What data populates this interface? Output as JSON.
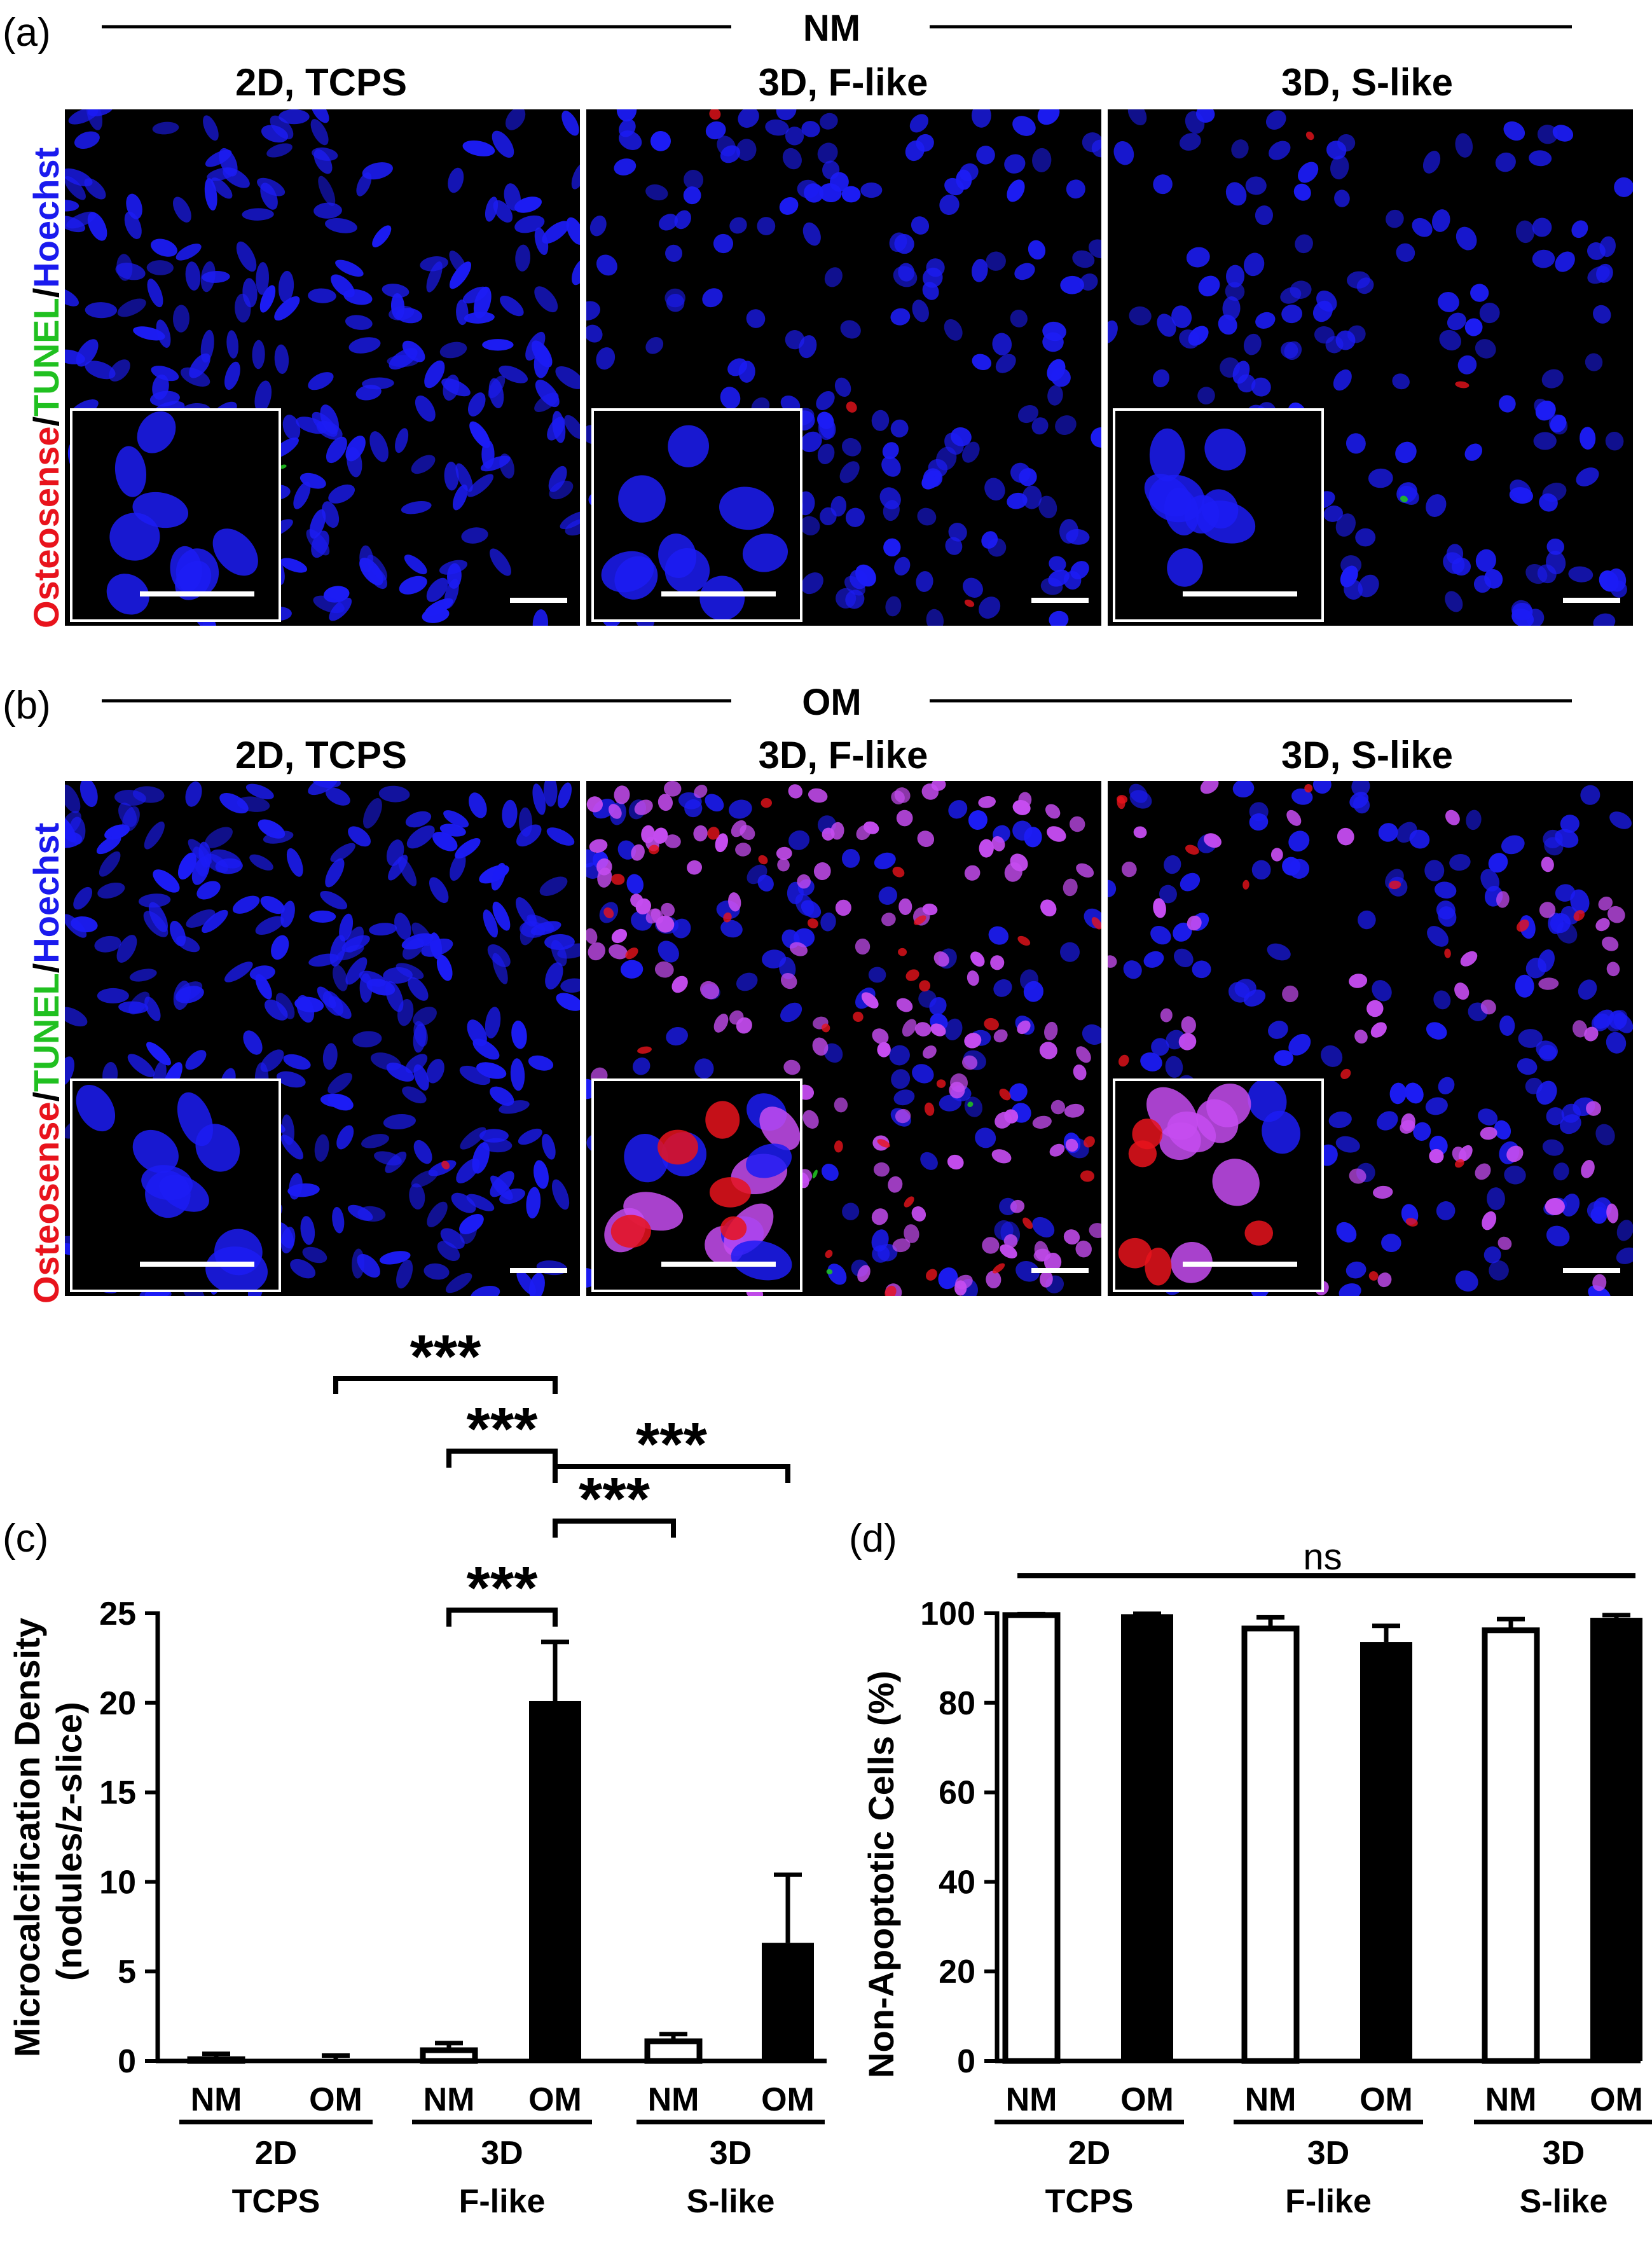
{
  "figure": {
    "panels": [
      {
        "id": "a",
        "label": "(a)",
        "medium": "NM",
        "stain_label": {
          "part1": "Osteosense",
          "sep1": "/",
          "part2": "TUNEL",
          "sep2": "/",
          "part3": "Hoechst"
        },
        "images": [
          {
            "title": "2D, TCPS",
            "seed": 11,
            "nuclei": 230,
            "red": 0,
            "green": 1,
            "magenta": 0,
            "elongated": true
          },
          {
            "title": "3D, F-like",
            "seed": 23,
            "nuclei": 190,
            "red": 4,
            "green": 0,
            "magenta": 0,
            "elongated": false
          },
          {
            "title": "3D, S-like",
            "seed": 37,
            "nuclei": 170,
            "red": 3,
            "green": 2,
            "magenta": 0,
            "elongated": false
          }
        ]
      },
      {
        "id": "b",
        "label": "(b)",
        "medium": "OM",
        "stain_label": {
          "part1": "Osteosense",
          "sep1": "/",
          "part2": "TUNEL",
          "sep2": "/",
          "part3": "Hoechst"
        },
        "images": [
          {
            "title": "2D, TCPS",
            "seed": 47,
            "nuclei": 280,
            "red": 1,
            "green": 0,
            "magenta": 0,
            "elongated": true
          },
          {
            "title": "3D, F-like",
            "seed": 59,
            "nuclei": 120,
            "red": 40,
            "green": 3,
            "magenta": 170,
            "elongated": false
          },
          {
            "title": "3D, S-like",
            "seed": 71,
            "nuclei": 150,
            "red": 18,
            "green": 0,
            "magenta": 60,
            "elongated": false
          }
        ]
      }
    ],
    "colors": {
      "red": "#e8131c",
      "green": "#20c020",
      "blue": "#1a1aee",
      "nucleus": "#1c1cf5",
      "magenta": "#c54cf0",
      "image_bg": "#000000",
      "bar_fill": "#000000",
      "bar_open": "#ffffff"
    }
  },
  "chart_data": [
    {
      "panel": "(c)",
      "type": "bar",
      "ylabel_line1": "Microcalcification Density",
      "ylabel_line2": "(nodules/z-slice)",
      "ylim": [
        0,
        25
      ],
      "yticks": [
        0,
        5,
        10,
        15,
        20,
        25
      ],
      "groups": [
        {
          "line1": "2D",
          "line2": "TCPS"
        },
        {
          "line1": "3D",
          "line2": "F-like"
        },
        {
          "line1": "3D",
          "line2": "S-like"
        }
      ],
      "categories": [
        "NM",
        "OM",
        "NM",
        "OM",
        "NM",
        "OM"
      ],
      "values": [
        0.1,
        0.1,
        0.6,
        20.1,
        1.1,
        6.6
      ],
      "errors": [
        0.3,
        0.2,
        0.4,
        3.3,
        0.4,
        3.8
      ],
      "fill": [
        "open",
        "solid",
        "open",
        "solid",
        "open",
        "solid"
      ],
      "significance": [
        {
          "from": 1,
          "to": 3,
          "label": "***"
        },
        {
          "from": 2,
          "to": 3,
          "label": "***"
        },
        {
          "from": 3,
          "to": 5,
          "label": "***"
        },
        {
          "from": 3,
          "to": 4,
          "label": "***"
        },
        {
          "from": 2,
          "to": 3,
          "label": "***"
        }
      ]
    },
    {
      "panel": "(d)",
      "type": "bar",
      "ylabel": "Non-Apoptotic Cells (%)",
      "ylim": [
        0,
        100
      ],
      "yticks": [
        0,
        20,
        40,
        60,
        80,
        100
      ],
      "groups": [
        {
          "line1": "2D",
          "line2": "TCPS"
        },
        {
          "line1": "3D",
          "line2": "F-like"
        },
        {
          "line1": "3D",
          "line2": "S-like"
        }
      ],
      "categories": [
        "NM",
        "OM",
        "NM",
        "OM",
        "NM",
        "OM"
      ],
      "values": [
        99.6,
        99.8,
        96.6,
        93.6,
        96.2,
        99.0
      ],
      "errors": [
        0.2,
        0.1,
        2.5,
        3.6,
        2.5,
        0.6
      ],
      "fill": [
        "open",
        "solid",
        "open",
        "solid",
        "open",
        "solid"
      ],
      "annotation": "ns"
    }
  ]
}
